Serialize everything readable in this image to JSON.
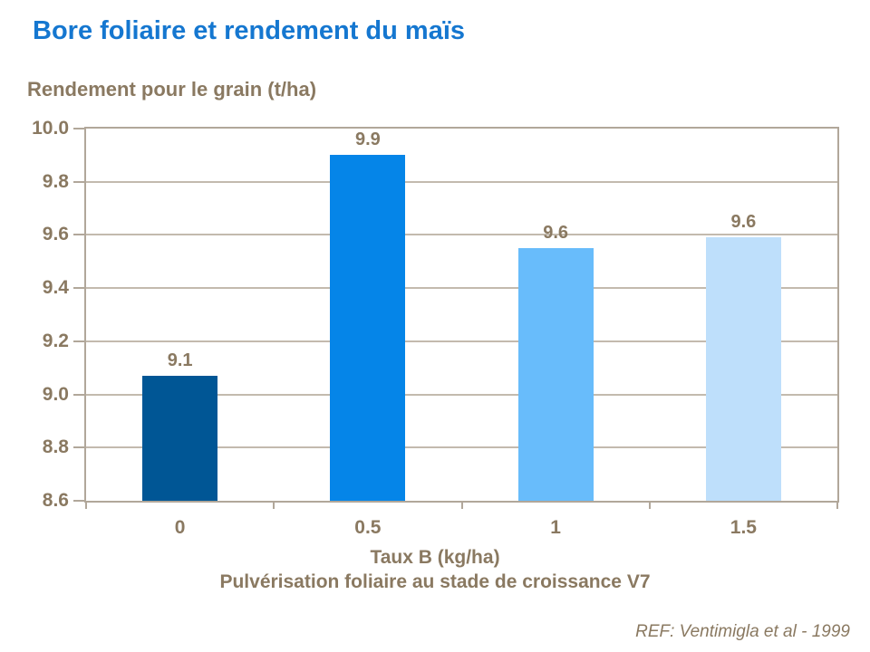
{
  "colors": {
    "title_blue": "#1577d0",
    "text_brown": "#8a7961",
    "grid_line": "#c3baae",
    "plot_frame": "#b1a79a",
    "background": "#ffffff"
  },
  "ref_text": "REF: Ventimigla et al - 1999",
  "chart_data": {
    "type": "bar",
    "title": "Bore foliaire et rendement du maïs",
    "ylabel": "Rendement pour le grain (t/ha)",
    "xlabel": "Taux B (kg/ha)",
    "xlabel_line2": "Pulvérisation foliaire au stade de croissance V7",
    "categories": [
      "0",
      "0.5",
      "1",
      "1.5"
    ],
    "values": [
      9.1,
      9.9,
      9.6,
      9.6
    ],
    "data_labels": [
      "9.1",
      "9.9",
      "9.6",
      "9.6"
    ],
    "plotted_values": [
      9.07,
      9.9,
      9.55,
      9.59
    ],
    "bar_colors": [
      "#005695",
      "#0585e8",
      "#68bcfb",
      "#bedffb"
    ],
    "ylim": [
      8.6,
      10.0
    ],
    "ytick_step": 0.2,
    "yticks": [
      "10.0",
      "9.8",
      "9.6",
      "9.4",
      "9.2",
      "9.0",
      "8.8",
      "8.6"
    ],
    "grid": true,
    "legend_position": "none"
  }
}
